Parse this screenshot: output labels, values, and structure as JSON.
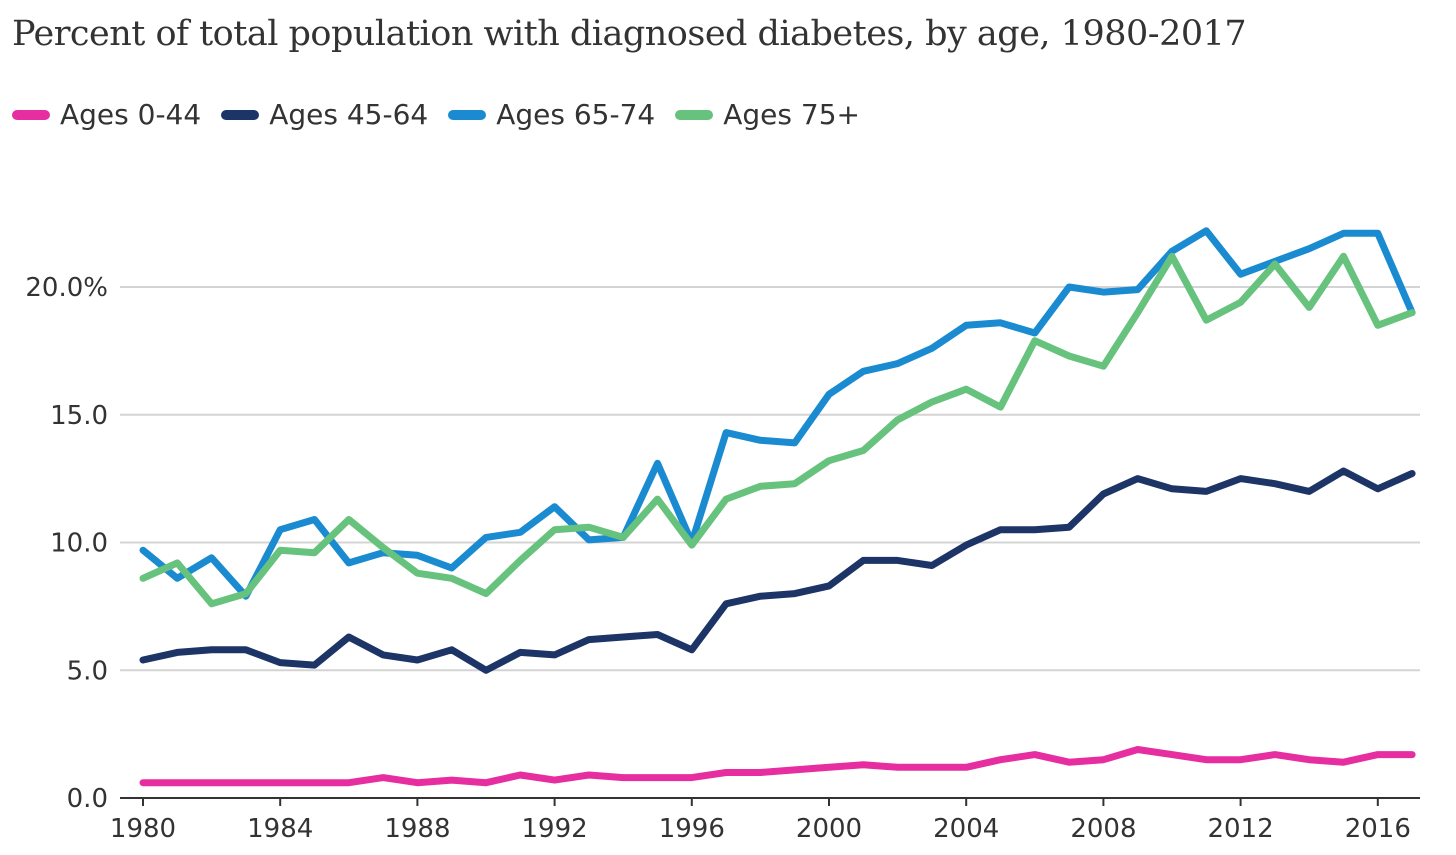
{
  "chart_data": {
    "type": "line",
    "title": "Percent of total population with diagnosed diabetes, by age, 1980-2017",
    "xlabel": "",
    "ylabel": "",
    "ylim": [
      0,
      23.5
    ],
    "xlim": [
      1980,
      2017
    ],
    "grid": true,
    "legend_position": "top-left",
    "y_ticks": [
      0,
      5,
      10,
      15,
      20
    ],
    "y_tick_labels": [
      "0.0",
      "5.0",
      "10.0",
      "15.0",
      "20.0%"
    ],
    "x_ticks": [
      1980,
      1984,
      1988,
      1992,
      1996,
      2000,
      2004,
      2008,
      2012,
      2016
    ],
    "x_tick_labels": [
      "1980",
      "1984",
      "1988",
      "1992",
      "1996",
      "2000",
      "2004",
      "2008",
      "2012",
      "2016"
    ],
    "x": [
      1980,
      1981,
      1982,
      1983,
      1984,
      1985,
      1986,
      1987,
      1988,
      1989,
      1990,
      1991,
      1992,
      1993,
      1994,
      1995,
      1996,
      1997,
      1998,
      1999,
      2000,
      2001,
      2002,
      2003,
      2004,
      2005,
      2006,
      2007,
      2008,
      2009,
      2010,
      2011,
      2012,
      2013,
      2014,
      2015,
      2016,
      2017
    ],
    "series": [
      {
        "name": "Ages 0-44",
        "color": "#e62ea0",
        "values": [
          0.6,
          0.6,
          0.6,
          0.6,
          0.6,
          0.6,
          0.6,
          0.8,
          0.6,
          0.7,
          0.6,
          0.9,
          0.7,
          0.9,
          0.8,
          0.8,
          0.8,
          1.0,
          1.0,
          1.1,
          1.2,
          1.3,
          1.2,
          1.2,
          1.2,
          1.5,
          1.7,
          1.4,
          1.5,
          1.9,
          1.7,
          1.5,
          1.5,
          1.7,
          1.5,
          1.4,
          1.7,
          1.7
        ]
      },
      {
        "name": "Ages 45-64",
        "color": "#1d3466",
        "values": [
          5.4,
          5.7,
          5.8,
          5.8,
          5.3,
          5.2,
          6.3,
          5.6,
          5.4,
          5.8,
          5.0,
          5.7,
          5.6,
          6.2,
          6.3,
          6.4,
          5.8,
          7.6,
          7.9,
          8.0,
          8.3,
          9.3,
          9.3,
          9.1,
          9.9,
          10.5,
          10.5,
          10.6,
          11.9,
          12.5,
          12.1,
          12.0,
          12.5,
          12.3,
          12.0,
          12.8,
          12.1,
          12.7
        ]
      },
      {
        "name": "Ages 65-74",
        "color": "#1a8bd0",
        "values": [
          9.7,
          8.6,
          9.4,
          7.9,
          10.5,
          10.9,
          9.2,
          9.6,
          9.5,
          9.0,
          10.2,
          10.4,
          11.4,
          10.1,
          10.2,
          13.1,
          10.0,
          14.3,
          14.0,
          13.9,
          15.8,
          16.7,
          17.0,
          17.6,
          18.5,
          18.6,
          18.2,
          20.0,
          19.8,
          19.9,
          21.4,
          22.2,
          20.5,
          21.0,
          21.5,
          22.1,
          22.1,
          19.0
        ]
      },
      {
        "name": "Ages 75+",
        "color": "#66c27c",
        "values": [
          8.6,
          9.2,
          7.6,
          8.0,
          9.7,
          9.6,
          10.9,
          9.8,
          8.8,
          8.6,
          8.0,
          9.3,
          10.5,
          10.6,
          10.2,
          11.7,
          9.9,
          11.7,
          12.2,
          12.3,
          13.2,
          13.6,
          14.8,
          15.5,
          16.0,
          15.3,
          17.9,
          17.3,
          16.9,
          19.0,
          21.2,
          18.7,
          19.4,
          20.9,
          19.2,
          21.2,
          18.5,
          19.0
        ]
      }
    ]
  }
}
